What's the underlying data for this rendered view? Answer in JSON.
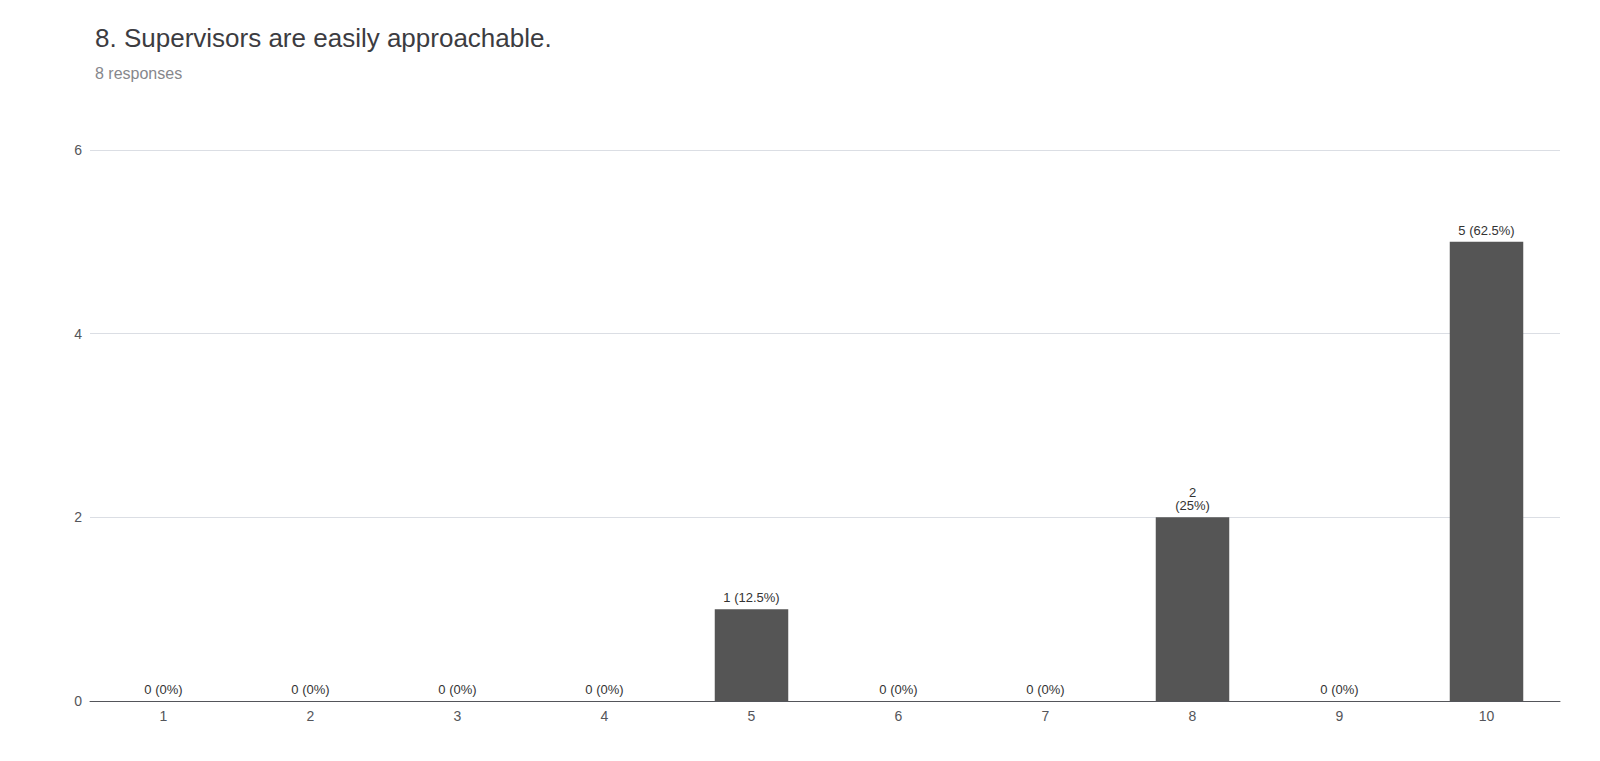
{
  "chart_data": {
    "type": "bar",
    "title": "8. Supervisors are easily approachable.",
    "subtitle": "8 responses",
    "categories": [
      1,
      2,
      3,
      4,
      5,
      6,
      7,
      8,
      9,
      10
    ],
    "values": [
      0,
      0,
      0,
      0,
      1,
      0,
      0,
      2,
      0,
      5
    ],
    "value_labels": [
      "0 (0%)",
      "0 (0%)",
      "0 (0%)",
      "0 (0%)",
      "1 (12.5%)",
      "0 (0%)",
      "0 (0%)",
      "2\n(25%)",
      "0 (0%)",
      "5 (62.5%)"
    ],
    "data_labels": true,
    "color": "#555555",
    "ylim": [
      0,
      6
    ],
    "yticks": [
      0,
      2,
      4,
      6
    ],
    "grid": true
  }
}
